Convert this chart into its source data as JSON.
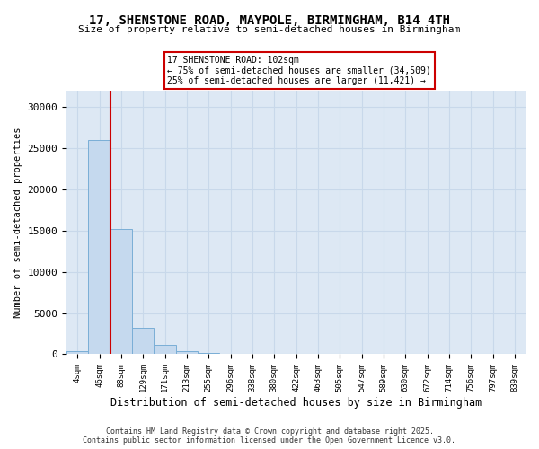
{
  "title": "17, SHENSTONE ROAD, MAYPOLE, BIRMINGHAM, B14 4TH",
  "subtitle": "Size of property relative to semi-detached houses in Birmingham",
  "xlabel": "Distribution of semi-detached houses by size in Birmingham",
  "ylabel": "Number of semi-detached properties",
  "categories": [
    "4sqm",
    "46sqm",
    "88sqm",
    "129sqm",
    "171sqm",
    "213sqm",
    "255sqm",
    "296sqm",
    "338sqm",
    "380sqm",
    "422sqm",
    "463sqm",
    "505sqm",
    "547sqm",
    "589sqm",
    "630sqm",
    "672sqm",
    "714sqm",
    "756sqm",
    "797sqm",
    "839sqm"
  ],
  "values": [
    400,
    26000,
    15200,
    3200,
    1100,
    400,
    200,
    50,
    20,
    5,
    2,
    1,
    0,
    0,
    0,
    0,
    0,
    0,
    0,
    0,
    0
  ],
  "bar_color": "#c5d9ee",
  "bar_edge_color": "#7aaed6",
  "grid_color": "#c8d8ea",
  "bg_color": "#dde8f4",
  "annotation_text": "17 SHENSTONE ROAD: 102sqm\n← 75% of semi-detached houses are smaller (34,509)\n25% of semi-detached houses are larger (11,421) →",
  "annotation_box_color": "#ffffff",
  "annotation_border_color": "#cc0000",
  "property_line_color": "#cc0000",
  "ylim": [
    0,
    32000
  ],
  "yticks": [
    0,
    5000,
    10000,
    15000,
    20000,
    25000,
    30000
  ],
  "footer": "Contains HM Land Registry data © Crown copyright and database right 2025.\nContains public sector information licensed under the Open Government Licence v3.0.",
  "red_line_index": 2
}
